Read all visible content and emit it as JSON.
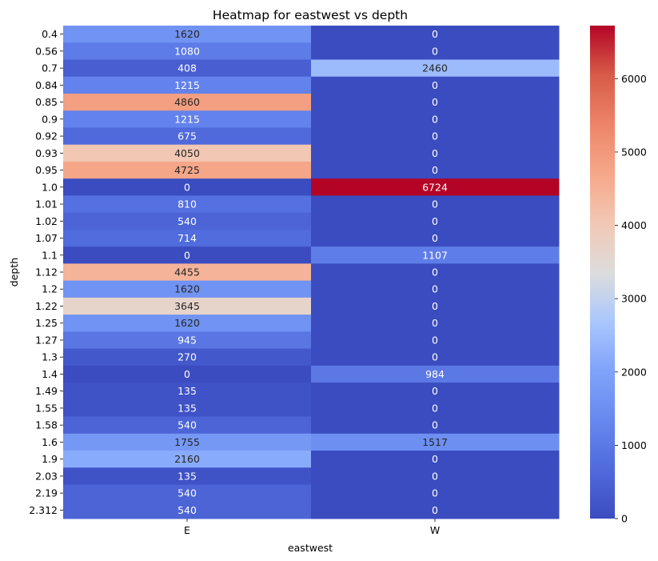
{
  "chart_data": {
    "type": "heatmap",
    "title": "Heatmap for eastwest vs depth",
    "xlabel": "eastwest",
    "ylabel": "depth",
    "x_categories": [
      "E",
      "W"
    ],
    "y_categories": [
      "0.4",
      "0.56",
      "0.7",
      "0.84",
      "0.85",
      "0.9",
      "0.92",
      "0.93",
      "0.95",
      "1.0",
      "1.01",
      "1.02",
      "1.07",
      "1.1",
      "1.12",
      "1.2",
      "1.22",
      "1.25",
      "1.27",
      "1.3",
      "1.4",
      "1.49",
      "1.55",
      "1.58",
      "1.6",
      "1.9",
      "2.03",
      "2.19",
      "2.312"
    ],
    "values": [
      [
        1620,
        0
      ],
      [
        1080,
        0
      ],
      [
        408,
        2460
      ],
      [
        1215,
        0
      ],
      [
        4860,
        0
      ],
      [
        1215,
        0
      ],
      [
        675,
        0
      ],
      [
        4050,
        0
      ],
      [
        4725,
        0
      ],
      [
        0,
        6724
      ],
      [
        810,
        0
      ],
      [
        540,
        0
      ],
      [
        714,
        0
      ],
      [
        0,
        1107
      ],
      [
        4455,
        0
      ],
      [
        1620,
        0
      ],
      [
        3645,
        0
      ],
      [
        1620,
        0
      ],
      [
        945,
        0
      ],
      [
        270,
        0
      ],
      [
        0,
        984
      ],
      [
        135,
        0
      ],
      [
        135,
        0
      ],
      [
        540,
        0
      ],
      [
        1755,
        1517
      ],
      [
        2160,
        0
      ],
      [
        135,
        0
      ],
      [
        540,
        0
      ],
      [
        540,
        0
      ]
    ],
    "colormap": "coolwarm",
    "vmin": 0,
    "vmax": 6724,
    "colorbar_ticks": [
      0,
      1000,
      2000,
      3000,
      4000,
      5000,
      6000
    ],
    "annotations": true,
    "grid": false
  }
}
